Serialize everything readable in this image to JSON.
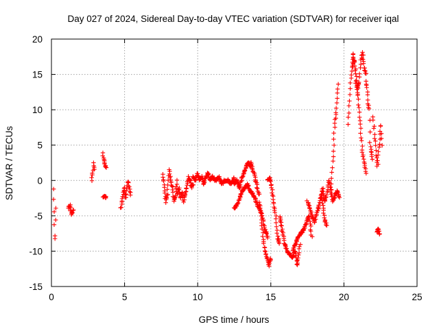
{
  "chart_data": {
    "type": "scatter",
    "title": "Day 027 of 2024, Sidereal Day-to-day VTEC variation (SDTVAR) for receiver iqal",
    "xlabel": "GPS time / hours",
    "ylabel": "SDTVAR / TECUs",
    "xlim": [
      0,
      25
    ],
    "ylim": [
      -15,
      20
    ],
    "xticks": [
      0,
      5,
      10,
      15,
      20,
      25
    ],
    "yticks": [
      -15,
      -10,
      -5,
      0,
      5,
      10,
      15,
      20
    ],
    "grid": true,
    "marker": "+",
    "color": "#ff0000",
    "series": [
      {
        "name": "SDTVAR",
        "segments": [
          {
            "t0": 0.15,
            "t1": 0.3,
            "y": [
              -1.2,
              -3,
              -5,
              -7,
              -9,
              -6,
              -4
            ]
          },
          {
            "t0": 1.15,
            "t1": 1.5,
            "y": [
              -4,
              -3.5,
              -4.8,
              -4.2
            ]
          },
          {
            "t0": 2.75,
            "t1": 2.95,
            "y": [
              0,
              1,
              2.5,
              1.5
            ]
          },
          {
            "t0": 3.5,
            "t1": 3.75,
            "y": [
              3.8,
              2.5,
              1.8
            ]
          },
          {
            "t0": 3.55,
            "t1": 3.75,
            "y": [
              -2.2,
              -2.4
            ]
          },
          {
            "t0": 4.75,
            "t1": 5.4,
            "y": [
              -4,
              -3,
              -2,
              -1,
              -2.5,
              -1.5,
              0,
              -1,
              -2
            ]
          },
          {
            "t0": 7.6,
            "t1": 8.6,
            "y": [
              1,
              -1,
              -3,
              -2,
              1.5,
              0,
              -1,
              -3,
              -2,
              0
            ]
          },
          {
            "t0": 8.6,
            "t1": 9.7,
            "y": [
              -2,
              -1,
              -2.5,
              -1.5,
              -3,
              -2,
              -1,
              0.5,
              0,
              -1,
              -0.5
            ]
          },
          {
            "t0": 9.7,
            "t1": 11,
            "y": [
              0.5,
              0,
              1,
              0,
              0.5,
              -0.5,
              0.5,
              1,
              0,
              0.5
            ]
          },
          {
            "t0": 11,
            "t1": 12.5,
            "y": [
              0.5,
              0,
              0.5,
              -0.5,
              0,
              0,
              -0.5,
              0.3
            ]
          },
          {
            "t0": 12.5,
            "t1": 13.6,
            "y": [
              -0.5,
              0,
              -1,
              0.5,
              1.5,
              2.5,
              2
            ]
          },
          {
            "t0": 12.5,
            "t1": 13.6,
            "y": [
              -4,
              -3.5,
              -2.5,
              -1.5,
              -1,
              -0.5,
              -1.5
            ]
          },
          {
            "t0": 13.6,
            "t1": 14.2,
            "y": [
              2.5,
              2,
              1,
              0,
              -1,
              -2
            ]
          },
          {
            "t0": 13.6,
            "t1": 14.8,
            "y": [
              -1.5,
              -2,
              -3,
              -4,
              -5,
              -7,
              -8
            ]
          },
          {
            "t0": 14.2,
            "t1": 15,
            "y": [
              -3,
              -5,
              -8,
              -10,
              -11,
              -12,
              -11
            ]
          },
          {
            "t0": 14.8,
            "t1": 15.6,
            "y": [
              0,
              0.5,
              -1,
              -3,
              -5,
              -8,
              -9
            ]
          },
          {
            "t0": 15.6,
            "t1": 17,
            "y": [
              -5,
              -7,
              -9,
              -10,
              -10.5,
              -11,
              -10,
              -12,
              -9
            ]
          },
          {
            "t0": 16.5,
            "t1": 17.8,
            "y": [
              -10,
              -9,
              -8,
              -7.5,
              -7,
              -6,
              -5,
              -8
            ]
          },
          {
            "t0": 17.5,
            "t1": 18.8,
            "y": [
              -3,
              -4,
              -5,
              -6,
              -4.5,
              -3.5,
              -2,
              -5,
              -6.5
            ]
          },
          {
            "t0": 18.4,
            "t1": 19.4,
            "y": [
              -2.5,
              -1,
              -3,
              -2,
              0,
              -1.5,
              -3,
              -2
            ]
          },
          {
            "t0": 19.1,
            "t1": 19.6,
            "y": [
              -2,
              0,
              2,
              4,
              6,
              8,
              9,
              10,
              12,
              13.5
            ]
          },
          {
            "t0": 19.4,
            "t1": 19.7,
            "y": [
              -2,
              -1.5,
              -2.5
            ]
          },
          {
            "t0": 20.3,
            "t1": 20.7,
            "y": [
              8,
              11,
              14,
              16,
              18,
              17
            ]
          },
          {
            "t0": 20.6,
            "t1": 21.5,
            "y": [
              16,
              17,
              15,
              13,
              14,
              17,
              18,
              16,
              15
            ]
          },
          {
            "t0": 20.8,
            "t1": 21.5,
            "y": [
              14,
              13,
              12,
              10,
              8,
              6,
              4,
              3,
              2,
              1
            ]
          },
          {
            "t0": 21.5,
            "t1": 21.95,
            "y": [
              14,
              13,
              11,
              10,
              5,
              4,
              3
            ]
          },
          {
            "t0": 22,
            "t1": 22.6,
            "y": [
              9,
              7,
              5,
              3,
              2,
              4,
              6,
              8,
              5
            ]
          },
          {
            "t0": 22.25,
            "t1": 22.45,
            "y": [
              -7.2,
              -6.9,
              -7.6
            ]
          }
        ]
      }
    ]
  }
}
